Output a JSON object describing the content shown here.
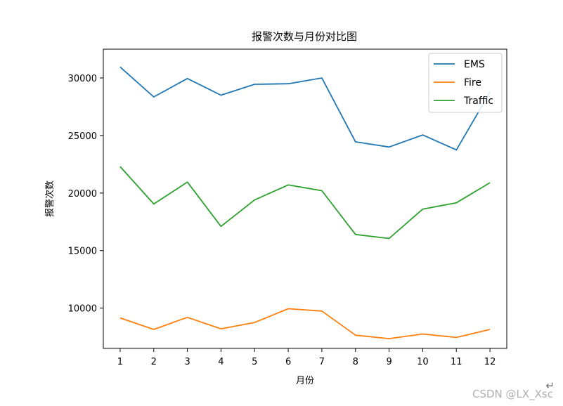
{
  "chart_data": {
    "type": "line",
    "title": "报警次数与月份对比图",
    "xlabel": "月份",
    "ylabel": "报警次数",
    "x": [
      1,
      2,
      3,
      4,
      5,
      6,
      7,
      8,
      9,
      10,
      11,
      12
    ],
    "xlim": [
      0.5,
      12.5
    ],
    "ylim": [
      6500,
      32500
    ],
    "yticks": [
      10000,
      15000,
      20000,
      25000,
      30000
    ],
    "grid": false,
    "legend_position": "top-right",
    "series": [
      {
        "name": "EMS",
        "color": "#1f77b4",
        "values": [
          30950,
          28350,
          29950,
          28500,
          29450,
          29500,
          30000,
          24450,
          24000,
          25050,
          23750,
          28750
        ]
      },
      {
        "name": "Fire",
        "color": "#ff7f0e",
        "values": [
          9150,
          8150,
          9200,
          8200,
          8750,
          9950,
          9750,
          7650,
          7350,
          7750,
          7450,
          8150
        ]
      },
      {
        "name": "Traffic",
        "color": "#2ca02c",
        "values": [
          22300,
          19050,
          20950,
          17100,
          19400,
          20700,
          20200,
          16400,
          16050,
          18600,
          19150,
          20900
        ]
      }
    ]
  },
  "watermark": "CSDN @LX_Xsc",
  "return_mark": "↵"
}
